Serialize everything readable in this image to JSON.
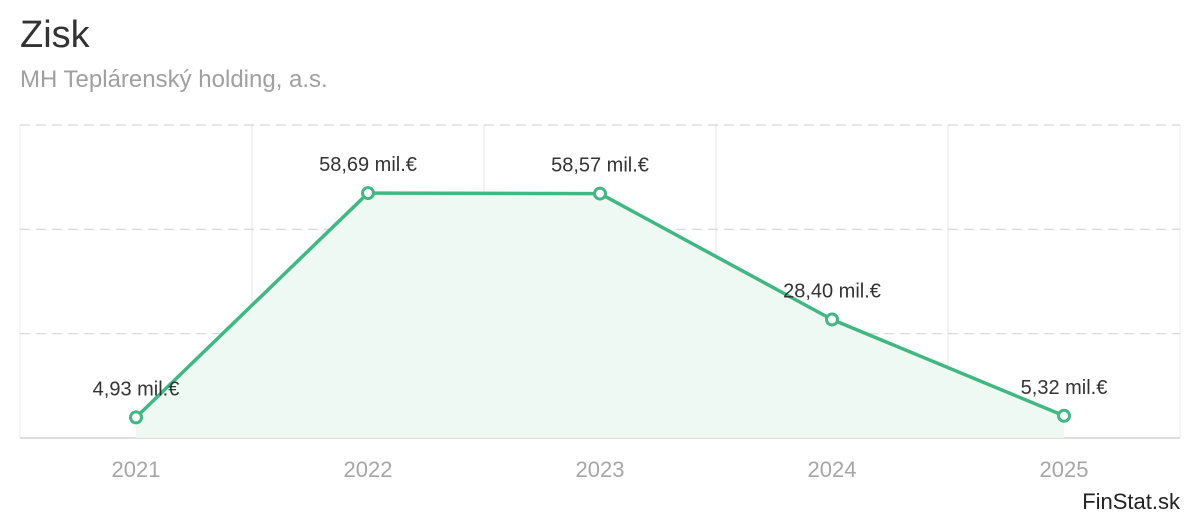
{
  "title": "Zisk",
  "subtitle": "MH Teplárenský holding, a.s.",
  "source": "FinStat.sk",
  "colors": {
    "line": "#41b883",
    "area": "#eef9f3",
    "axis_text": "#a6a6a6",
    "label_text": "#333333"
  },
  "chart_data": {
    "type": "area",
    "categories": [
      "2021",
      "2022",
      "2023",
      "2024",
      "2025"
    ],
    "values": [
      4.93,
      58.69,
      58.57,
      28.4,
      5.32
    ],
    "labels": [
      "4,93 mil.€",
      "58,69 mil.€",
      "58,57 mil.€",
      "28,40 mil.€",
      "5,32 mil.€"
    ],
    "unit": "mil.€",
    "ylim": [
      0,
      75
    ],
    "grid": true
  }
}
